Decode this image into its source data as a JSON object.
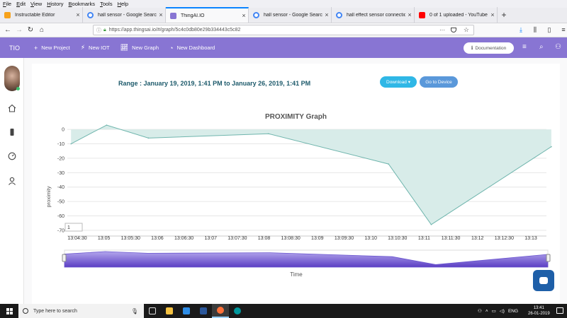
{
  "menu_bar": [
    "File",
    "Edit",
    "View",
    "History",
    "Bookmarks",
    "Tools",
    "Help"
  ],
  "tabs": [
    {
      "label": "Instructable Editor",
      "icon": "instructables-icon",
      "color": "#f7a21b",
      "active": false
    },
    {
      "label": "hall sensor - Google Search",
      "icon": "google-icon",
      "color": "#4285f4",
      "active": false
    },
    {
      "label": "ThingAI.IO",
      "icon": "thingai-icon",
      "color": "#8875d3",
      "active": true
    },
    {
      "label": "hall sensor - Google Search",
      "icon": "google-icon",
      "color": "#4285f4",
      "active": false
    },
    {
      "label": "hall effect sensor connection",
      "icon": "google-icon",
      "color": "#4285f4",
      "active": false
    },
    {
      "label": "0 of 1 uploaded - YouTube",
      "icon": "youtube-icon",
      "color": "#ff0000",
      "active": false
    }
  ],
  "url": "https://app.thingsai.io/#/graph/5c4c0db80e29b334443c5c82",
  "app_header": {
    "brand": "TIO",
    "nav": [
      {
        "label": "New Project",
        "icon": "plus-icon"
      },
      {
        "label": "New IOT",
        "icon": "cpu-icon"
      },
      {
        "label": "New Graph",
        "icon": "line-chart-icon"
      },
      {
        "label": "New Dashboard",
        "icon": "dashboard-icon"
      }
    ],
    "doc_button": "Documentation"
  },
  "range_text": "Range : January 19, 2019, 1:41 PM to January 26, 2019, 1:41 PM",
  "buttons": {
    "download": "Download ▾",
    "device": "Go to Device"
  },
  "range_input_value": "1",
  "chart_data": {
    "type": "area",
    "title": "PROXIMITY Graph",
    "xlabel": "Time",
    "ylabel": "proximity",
    "x_ticks": [
      "13:04:30",
      "13:05",
      "13:05:30",
      "13:06",
      "13:06:30",
      "13:07",
      "13:07:30",
      "13:08",
      "13:08:30",
      "13:09",
      "13:09:30",
      "13:10",
      "13:10:30",
      "13:11",
      "13:11:30",
      "13:12",
      "13:12:30",
      "13:13"
    ],
    "y_ticks": [
      0,
      -10,
      -20,
      -30,
      -40,
      -50,
      -60,
      -70
    ],
    "ylim": [
      -72,
      3
    ],
    "grid": true,
    "fill_color": "#d8ece9",
    "line_color": "#6fb5ad",
    "series": [
      {
        "x": [
          "13:04:23",
          "13:05:03",
          "13:05:50",
          "13:08:05",
          "13:10:20",
          "13:11:08",
          "13:13:23"
        ],
        "values": [
          -10,
          3,
          -6,
          -3,
          -24,
          -66,
          -12
        ]
      }
    ]
  },
  "taskbar": {
    "search_placeholder": "Type here to search",
    "apps": [
      {
        "name": "task-view-icon",
        "color": "#dddddd"
      },
      {
        "name": "file-explorer-icon",
        "color": "#f5c242"
      },
      {
        "name": "store-icon",
        "color": "#2e8de6"
      },
      {
        "name": "word-icon",
        "color": "#2b579a"
      },
      {
        "name": "firefox-icon",
        "color": "#ff7139"
      },
      {
        "name": "arduino-icon",
        "color": "#00979c"
      }
    ],
    "lang": "ENG",
    "time": "13:41",
    "date": "26-01-2019"
  }
}
